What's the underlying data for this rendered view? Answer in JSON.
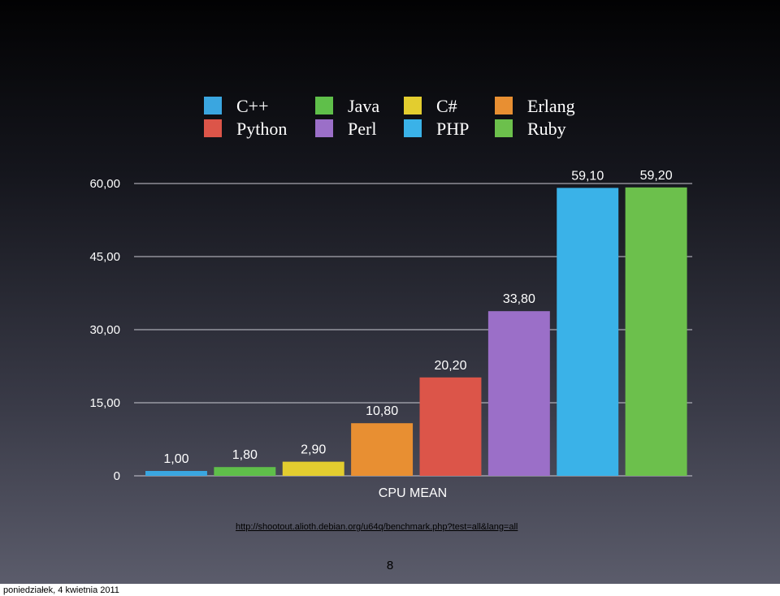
{
  "chart_data": {
    "type": "bar",
    "title": "",
    "xlabel": "CPU MEAN",
    "ylabel": "",
    "ylim": [
      0,
      60
    ],
    "yticks": [
      "0",
      "15,00",
      "30,00",
      "45,00",
      "60,00"
    ],
    "ytick_values": [
      0,
      15,
      30,
      45,
      60
    ],
    "grid": true,
    "legend_position": "top",
    "series": [
      {
        "name": "C++",
        "value": 1.0,
        "label": "1,00",
        "color": "#3aa6e0"
      },
      {
        "name": "Java",
        "value": 1.8,
        "label": "1,80",
        "color": "#5fbf4a"
      },
      {
        "name": "C#",
        "value": 2.9,
        "label": "2,90",
        "color": "#e3cd2f"
      },
      {
        "name": "Erlang",
        "value": 10.8,
        "label": "10,80",
        "color": "#e88f32"
      },
      {
        "name": "Python",
        "value": 20.2,
        "label": "20,20",
        "color": "#dc5549"
      },
      {
        "name": "Perl",
        "value": 33.8,
        "label": "33,80",
        "color": "#9b6fc8"
      },
      {
        "name": "PHP",
        "value": 59.1,
        "label": "59,10",
        "color": "#3ab2e8"
      },
      {
        "name": "Ruby",
        "value": 59.2,
        "label": "59,20",
        "color": "#6cc04c"
      }
    ]
  },
  "source_url": "http://shootout.alioth.debian.org/u64q/benchmark.php?test=all&lang=all",
  "page_number": "8",
  "footer_date": "poniedziałek, 4 kwietnia 2011"
}
